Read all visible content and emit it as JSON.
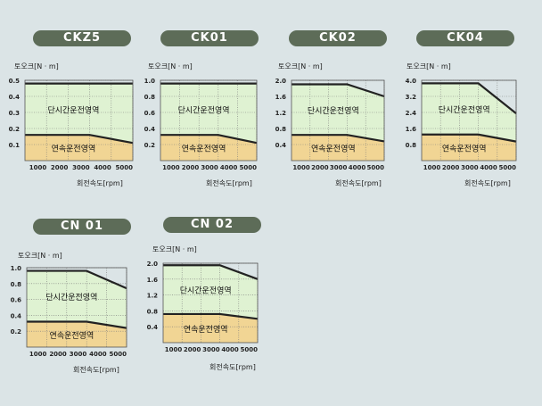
{
  "colors": {
    "background": "#dbe4e6",
    "pill": "#5d6c58",
    "intermittent_zone": "#dff2d2",
    "continuous_zone": "#f1d594",
    "grid": "#7a7a7a",
    "curve": "#222222"
  },
  "chart_data": [
    {
      "type": "area",
      "title": "CKZ5",
      "ylabel": "토오크[N · m]",
      "xlabel": "회전속도[rpm]",
      "ylim": [
        0,
        0.5
      ],
      "yticks": [
        0.1,
        0.2,
        0.3,
        0.4,
        0.5
      ],
      "ytick_labels": [
        "0.1",
        "0.2",
        "0.3",
        "0.4",
        "0.5"
      ],
      "xlim": [
        0,
        5000
      ],
      "xticks": [
        1000,
        2000,
        3000,
        4000,
        5000
      ],
      "xtick_labels": [
        "1000",
        "2000",
        "3000",
        "4000",
        "5000"
      ],
      "grid": true,
      "series": [
        {
          "name": "단시간운전영역",
          "x": [
            0,
            5000
          ],
          "y": [
            0.48,
            0.48
          ]
        },
        {
          "name": "연속운전영역",
          "x": [
            0,
            3000,
            5000
          ],
          "y": [
            0.16,
            0.16,
            0.11
          ]
        }
      ]
    },
    {
      "type": "area",
      "title": "CK01",
      "ylabel": "토오크[N · m]",
      "xlabel": "회전속도[rpm]",
      "ylim": [
        0,
        1.0
      ],
      "yticks": [
        0.2,
        0.4,
        0.6,
        0.8,
        1.0
      ],
      "ytick_labels": [
        "0.2",
        "0.4",
        "0.6",
        "0.8",
        "1.0"
      ],
      "xlim": [
        0,
        5000
      ],
      "xticks": [
        1000,
        2000,
        3000,
        4000,
        5000
      ],
      "xtick_labels": [
        "1000",
        "2000",
        "3000",
        "4000",
        "5000"
      ],
      "grid": true,
      "series": [
        {
          "name": "단시간운전영역",
          "x": [
            0,
            5000
          ],
          "y": [
            0.96,
            0.96
          ]
        },
        {
          "name": "연속운전영역",
          "x": [
            0,
            3000,
            5000
          ],
          "y": [
            0.32,
            0.32,
            0.22
          ]
        }
      ]
    },
    {
      "type": "area",
      "title": "CK02",
      "ylabel": "토오크[N · m]",
      "xlabel": "회전속도[rpm]",
      "ylim": [
        0,
        2.0
      ],
      "yticks": [
        0.4,
        0.8,
        1.2,
        1.6,
        2.0
      ],
      "ytick_labels": [
        "0.4",
        "0.8",
        "1.2",
        "1.6",
        "2.0"
      ],
      "xlim": [
        0,
        5000
      ],
      "xticks": [
        1000,
        2000,
        3000,
        4000,
        5000
      ],
      "xtick_labels": [
        "1000",
        "2000",
        "3000",
        "4000",
        "5000"
      ],
      "grid": true,
      "series": [
        {
          "name": "단시간운전영역",
          "x": [
            0,
            3000,
            5000
          ],
          "y": [
            1.9,
            1.9,
            1.6
          ]
        },
        {
          "name": "연속운전영역",
          "x": [
            0,
            3000,
            5000
          ],
          "y": [
            0.64,
            0.64,
            0.48
          ]
        }
      ]
    },
    {
      "type": "area",
      "title": "CK04",
      "ylabel": "토오크[N · m]",
      "xlabel": "회전속도[rpm]",
      "ylim": [
        0,
        4.0
      ],
      "yticks": [
        0.8,
        1.6,
        2.4,
        3.2,
        4.0
      ],
      "ytick_labels": [
        "0.8",
        "1.6",
        "2.4",
        "3.2",
        "4.0"
      ],
      "xlim": [
        0,
        5000
      ],
      "xticks": [
        1000,
        2000,
        3000,
        4000,
        5000
      ],
      "xtick_labels": [
        "1000",
        "2000",
        "3000",
        "4000",
        "5000"
      ],
      "grid": true,
      "series": [
        {
          "name": "단시간운전영역",
          "x": [
            0,
            3000,
            5000
          ],
          "y": [
            3.85,
            3.85,
            2.35
          ]
        },
        {
          "name": "연속운전영역",
          "x": [
            0,
            3000,
            5000
          ],
          "y": [
            1.3,
            1.3,
            0.95
          ]
        }
      ]
    },
    {
      "type": "area",
      "title": "CN 01",
      "ylabel": "토오크[N · m]",
      "xlabel": "회전속도[rpm]",
      "ylim": [
        0,
        1.0
      ],
      "yticks": [
        0.2,
        0.4,
        0.6,
        0.8,
        1.0
      ],
      "ytick_labels": [
        "0.2",
        "0.4",
        "0.6",
        "0.8",
        "1.0"
      ],
      "xlim": [
        0,
        5000
      ],
      "xticks": [
        1000,
        2000,
        3000,
        4000,
        5000
      ],
      "xtick_labels": [
        "1000",
        "2000",
        "3000",
        "4000",
        "5000"
      ],
      "grid": true,
      "series": [
        {
          "name": "단시간운전영역",
          "x": [
            0,
            3000,
            5000
          ],
          "y": [
            0.96,
            0.96,
            0.74
          ]
        },
        {
          "name": "연속운전영역",
          "x": [
            0,
            3000,
            5000
          ],
          "y": [
            0.32,
            0.32,
            0.24
          ]
        }
      ]
    },
    {
      "type": "area",
      "title": "CN 02",
      "ylabel": "토오크[N · m]",
      "xlabel": "회전속도[rpm]",
      "ylim": [
        0,
        2.0
      ],
      "yticks": [
        0.4,
        0.8,
        1.2,
        1.6,
        2.0
      ],
      "ytick_labels": [
        "0.4",
        "0.8",
        "1.2",
        "1.6",
        "2.0"
      ],
      "xlim": [
        0,
        5000
      ],
      "xticks": [
        1000,
        2000,
        3000,
        4000,
        5000
      ],
      "xtick_labels": [
        "1000",
        "2000",
        "3000",
        "4000",
        "5000"
      ],
      "grid": true,
      "series": [
        {
          "name": "단시간운전영역",
          "x": [
            0,
            3000,
            5000
          ],
          "y": [
            1.95,
            1.95,
            1.6
          ]
        },
        {
          "name": "연속운전영역",
          "x": [
            0,
            3000,
            5000
          ],
          "y": [
            0.72,
            0.72,
            0.6
          ]
        }
      ]
    }
  ]
}
